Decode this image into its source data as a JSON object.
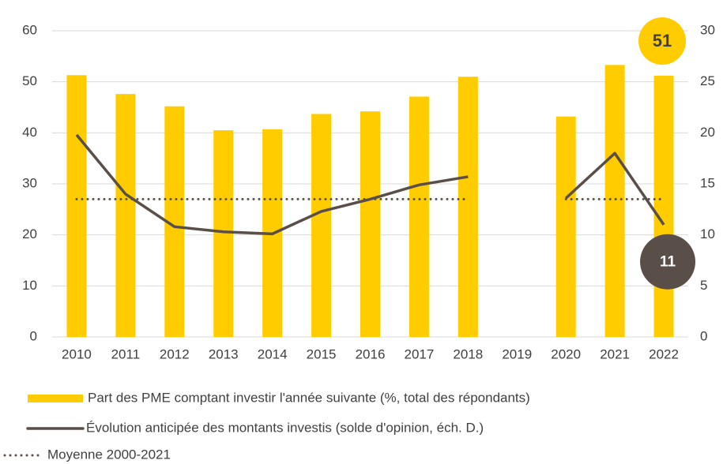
{
  "chart_data": {
    "type": "bar",
    "categories": [
      "2010",
      "2011",
      "2012",
      "2013",
      "2014",
      "2015",
      "2016",
      "2017",
      "2018",
      "2019",
      "2020",
      "2021",
      "2022"
    ],
    "series": [
      {
        "name": "Part des PME comptant investir l'année suivante (%, total des répondants)",
        "color": "#ffcc00",
        "type": "bar",
        "axis": "y",
        "values": [
          51.3,
          47.6,
          45.2,
          40.5,
          40.7,
          43.7,
          44.2,
          47.1,
          51.0,
          null,
          43.2,
          53.3,
          51.2
        ],
        "value_labels": [
          null,
          null,
          null,
          null,
          null,
          null,
          null,
          null,
          null,
          null,
          null,
          null,
          "51"
        ]
      },
      {
        "name": "Évolution anticipée des montants investis (solde d'opinion, éch. D.)",
        "color": "#5a4e48",
        "type": "line",
        "axis": "y2",
        "values": [
          19.8,
          14.0,
          10.8,
          10.3,
          10.1,
          12.3,
          13.5,
          14.9,
          15.7,
          null,
          13.6,
          18.0,
          11.0
        ],
        "value_labels": [
          null,
          null,
          null,
          null,
          null,
          null,
          null,
          null,
          null,
          null,
          null,
          null,
          "11"
        ]
      },
      {
        "name": "Moyenne 2000-2021",
        "color": "#5a4e48",
        "type": "line",
        "linestyle": "dotted",
        "axis": "y2",
        "values": [
          13.5,
          13.5,
          13.5,
          13.5,
          13.5,
          13.5,
          13.5,
          13.5,
          13.5,
          null,
          13.5,
          13.5,
          13.5
        ]
      }
    ],
    "ylim": [
      0,
      60
    ],
    "yticks": [
      0,
      10,
      20,
      30,
      40,
      50,
      60
    ],
    "y2lim": [
      0,
      30
    ],
    "y2ticks": [
      0,
      5,
      10,
      15,
      20,
      25,
      30
    ],
    "grid": true,
    "legend": "bottom"
  }
}
